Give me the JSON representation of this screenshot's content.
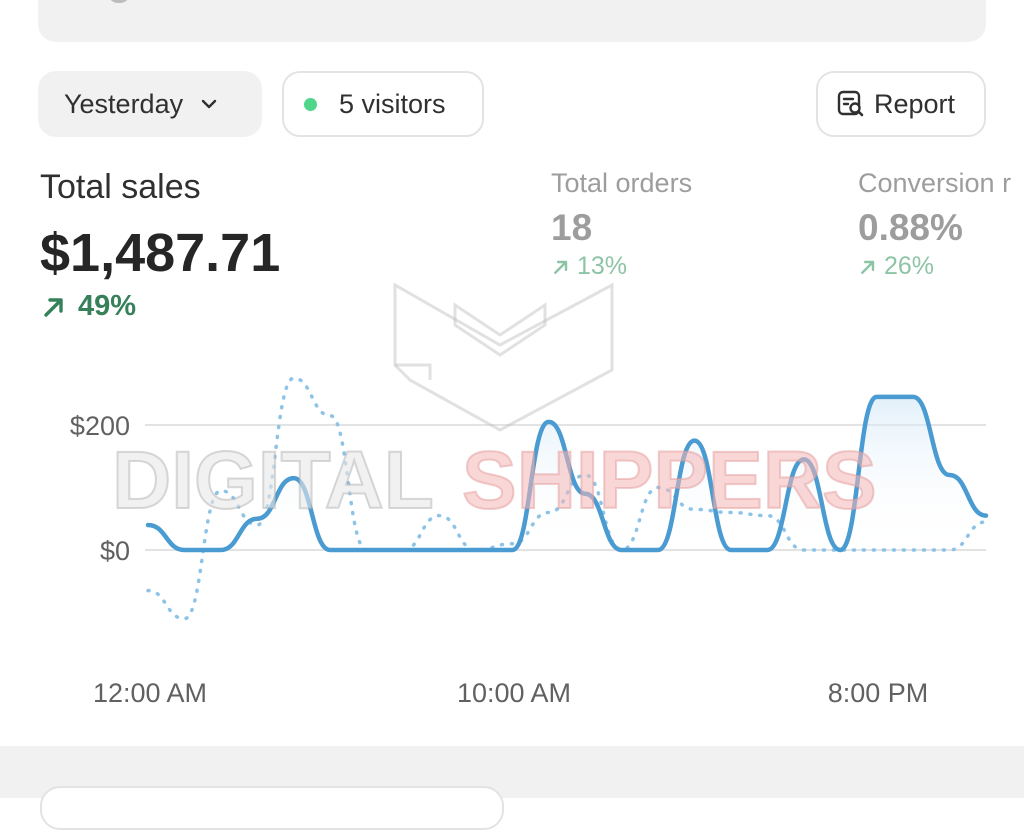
{
  "filters": {
    "date_range": "Yesterday",
    "visitors": "5 visitors",
    "report_label": "Report"
  },
  "metrics": {
    "total_sales": {
      "label": "Total sales",
      "value": "$1,487.71",
      "change": "49%"
    },
    "total_orders": {
      "label": "Total orders",
      "value": "18",
      "change": "13%"
    },
    "conversion": {
      "label": "Conversion r",
      "value": "0.88%",
      "change": "26%"
    }
  },
  "colors": {
    "primary_line": "#4a9bd1",
    "comparison_line": "#8ec3e8",
    "positive": "#36805a",
    "live_dot": "#4fd68a"
  },
  "icons": {
    "date_chevron": "chevron-down-icon",
    "report": "report-search-icon",
    "trend": "arrow-up-right-icon"
  },
  "watermark": {
    "mark": "shield-logo",
    "text_left": "DIGITAL",
    "text_right": "SHIPPERS"
  },
  "chart_data": {
    "type": "line",
    "title": "",
    "x_ticks": [
      "12:00 AM",
      "10:00 AM",
      "8:00 PM"
    ],
    "y_ticks": [
      "$0",
      "$200"
    ],
    "ylim": [
      -120,
      280
    ],
    "grid": true,
    "x": [
      0,
      1,
      2,
      3,
      4,
      5,
      6,
      7,
      8,
      9,
      10,
      11,
      12,
      13,
      14,
      15,
      16,
      17,
      18,
      19,
      20,
      21,
      22,
      23
    ],
    "series": [
      {
        "style": "solid",
        "values": [
          40,
          0,
          0,
          50,
          115,
          0,
          0,
          0,
          0,
          0,
          0,
          205,
          90,
          0,
          0,
          175,
          0,
          0,
          145,
          0,
          245,
          245,
          120,
          55
        ]
      },
      {
        "style": "dotted",
        "values": [
          -65,
          -110,
          95,
          40,
          275,
          215,
          0,
          0,
          55,
          0,
          10,
          60,
          120,
          0,
          100,
          65,
          60,
          55,
          0,
          0,
          0,
          0,
          0,
          45
        ]
      }
    ]
  }
}
